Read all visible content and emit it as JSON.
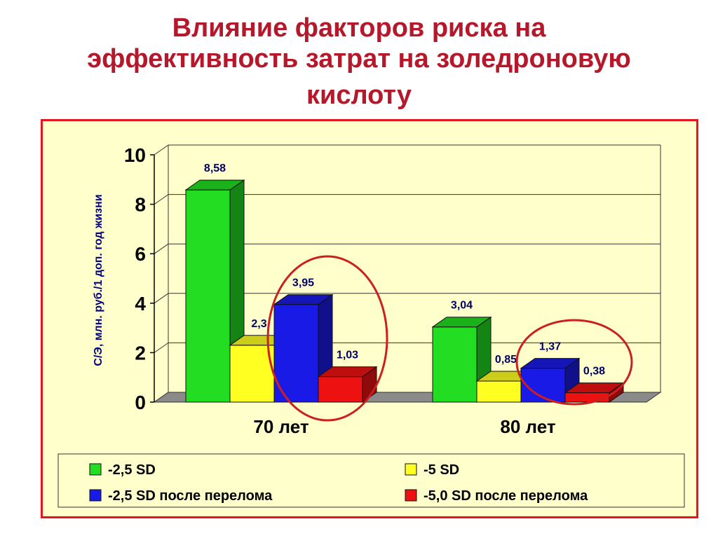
{
  "slide": {
    "title_lines": [
      "Влияние факторов риска на",
      "эффективность затрат на золедроновую",
      "кислоту"
    ]
  },
  "colors": {
    "title": "#b5182b",
    "frame_border": "#e8141c",
    "frame_bg": "#ffffcc",
    "highlight_circle": "#cc1f1f"
  },
  "chart_data": {
    "type": "bar",
    "style": "3d-clustered",
    "categories": [
      "70 лет",
      "80 лет"
    ],
    "series": [
      {
        "name": "-2,5 SD",
        "values": [
          8.58,
          3.04
        ],
        "labels": [
          "8,58",
          "3,04"
        ],
        "color": "#22dd22"
      },
      {
        "name": "-5 SD",
        "values": [
          2.3,
          0.85
        ],
        "labels": [
          "2,3",
          "0,85"
        ],
        "color": "#ffff22"
      },
      {
        "name": "-2,5 SD после перелома",
        "values": [
          3.95,
          1.37
        ],
        "labels": [
          "3,95",
          "1,37"
        ],
        "color": "#1a1ae6"
      },
      {
        "name": "-5,0 SD после перелома",
        "values": [
          1.03,
          0.38
        ],
        "labels": [
          "1,03",
          "0,38"
        ],
        "color": "#ee1111"
      }
    ],
    "ylabel": "С/Э, млн. руб./1 доп. год жизни",
    "ylim": [
      0,
      10
    ],
    "yticks": [
      "0",
      "2",
      "4",
      "6",
      "8",
      "10"
    ],
    "grid": true,
    "legend_position": "bottom",
    "highlighted_series": [
      "-2,5 SD после перелома",
      "-5,0 SD после перелома"
    ]
  }
}
